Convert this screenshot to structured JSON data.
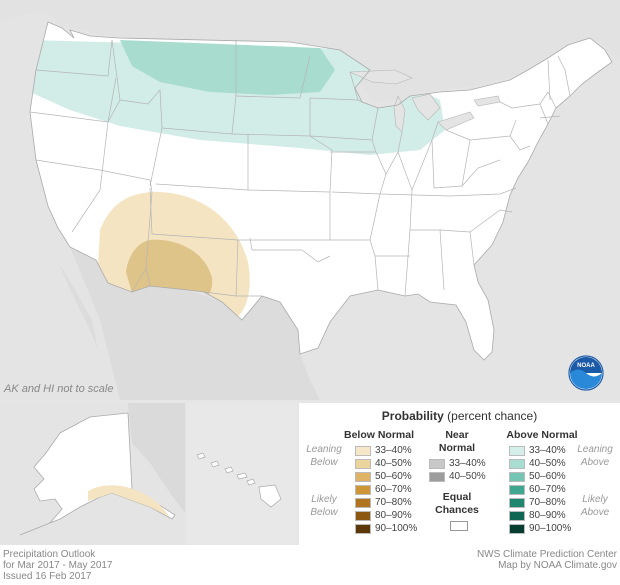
{
  "map": {
    "scale_note": "AK and HI not to scale",
    "logo_text": "NOAA",
    "colors": {
      "land": "#ffffff",
      "neighbor_land": "#e4e4e4",
      "water": "#e4e4e4",
      "state_border": "#b5b5b5",
      "above_33_40": "#d2ece7",
      "above_40_50": "#a8dccf",
      "below_33_40": "#f4e4c2",
      "below_40_50": "#dfc48a"
    },
    "regions": [
      {
        "name": "above-normal-north-33-40",
        "category": "Above Normal",
        "range": "33–40%"
      },
      {
        "name": "above-normal-montana-dakota-40-50",
        "category": "Above Normal",
        "range": "40–50%"
      },
      {
        "name": "below-normal-southwest-33-40",
        "category": "Below Normal",
        "range": "33–40%"
      },
      {
        "name": "below-normal-arizona-newmexico-40-50",
        "category": "Below Normal",
        "range": "40–50%"
      }
    ]
  },
  "legend": {
    "title_bold": "Probability",
    "title_rest": " (percent chance)",
    "below": {
      "heading": "Below Normal",
      "items": [
        {
          "label": "33–40%",
          "color": "#f6e7c8"
        },
        {
          "label": "40–50%",
          "color": "#ecd49e"
        },
        {
          "label": "50–60%",
          "color": "#deb366"
        },
        {
          "label": "60–70%",
          "color": "#cf9638"
        },
        {
          "label": "70–80%",
          "color": "#b0751e"
        },
        {
          "label": "80–90%",
          "color": "#8c5811"
        },
        {
          "label": "90–100%",
          "color": "#5c3808"
        }
      ]
    },
    "near": {
      "heading_line1": "Near",
      "heading_line2": "Normal",
      "items": [
        {
          "label": "33–40%",
          "color": "#c8c8c8"
        },
        {
          "label": "40–50%",
          "color": "#9c9c9c"
        }
      ]
    },
    "equal": {
      "line1": "Equal",
      "line2": "Chances",
      "color": "#ffffff"
    },
    "above": {
      "heading": "Above Normal",
      "items": [
        {
          "label": "33–40%",
          "color": "#d4eee9"
        },
        {
          "label": "40–50%",
          "color": "#a9ddd1"
        },
        {
          "label": "50–60%",
          "color": "#74c5b3"
        },
        {
          "label": "60–70%",
          "color": "#3fa690"
        },
        {
          "label": "70–80%",
          "color": "#1f866f"
        },
        {
          "label": "80–90%",
          "color": "#106652"
        },
        {
          "label": "90–100%",
          "color": "#073d31"
        }
      ]
    },
    "side_labels": {
      "leaning_below_1": "Leaning",
      "leaning_below_2": "Below",
      "likely_below_1": "Likely",
      "likely_below_2": "Below",
      "leaning_above_1": "Leaning",
      "leaning_above_2": "Above",
      "likely_above_1": "Likely",
      "likely_above_2": "Above"
    }
  },
  "footer": {
    "line1": "Precipitation Outlook",
    "line2": "for Mar 2017 - May 2017",
    "line3": "Issued 16 Feb 2017",
    "credit1": "NWS Climate Prediction Center",
    "credit2": "Map by NOAA Climate.gov"
  }
}
